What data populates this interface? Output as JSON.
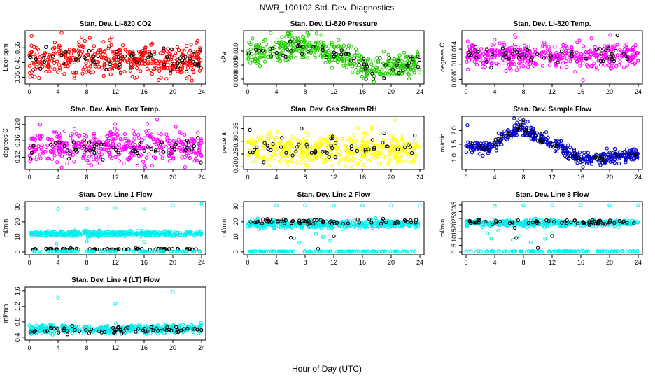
{
  "page": {
    "title": "NWR_100102  Std. Dev. Diagnostics",
    "xlabel": "Hour of Day (UTC)"
  },
  "colors": {
    "red": "#ff0000",
    "green": "#22cc00",
    "magenta": "#ff00ff",
    "yellow": "#ffff00",
    "blue": "#0000cc",
    "cyan": "#00eeee",
    "black": "#000000"
  },
  "chart_data": [
    {
      "type": "scatter",
      "title": "Stan. Dev. Li-820 CO2",
      "ylabel": "Licor ppm",
      "xlim": [
        0,
        24
      ],
      "ylim": [
        0.32,
        0.65
      ],
      "xticks": [
        0,
        4,
        8,
        12,
        16,
        20,
        24
      ],
      "yticks": [
        0.35,
        0.45,
        0.55
      ],
      "ytick_labels": [
        "0.35",
        "0.45",
        "0.55"
      ],
      "color": "red",
      "series": [
        {
          "name": "points",
          "color": "red",
          "pattern": "band",
          "n": 420,
          "mean": 0.47,
          "spread": 0.055,
          "outliers": [
            [
              0.3,
              0.63
            ],
            [
              4.5,
              0.66
            ],
            [
              7.3,
              0.62
            ],
            [
              11.5,
              0.62
            ],
            [
              19.1,
              0.34
            ],
            [
              0.4,
              0.36
            ]
          ]
        },
        {
          "name": "daily mean",
          "color": "black",
          "pattern": "band",
          "n": 60,
          "mean": 0.47,
          "spread": 0.04,
          "outliers": [
            [
              0.5,
              0.4
            ],
            [
              11.2,
              0.44
            ],
            [
              19.8,
              0.54
            ]
          ]
        }
      ]
    },
    {
      "type": "scatter",
      "title": "Stan. Dev. Li-820 Pressure",
      "ylabel": "kPa",
      "xlim": [
        0,
        24
      ],
      "ylim": [
        -0.001,
        0.0165
      ],
      "xticks": [
        0,
        4,
        8,
        12,
        16,
        20,
        24
      ],
      "yticks": [
        0.0,
        0.005,
        0.01
      ],
      "ytick_labels": [
        "0.000",
        "0.005",
        "0.010"
      ],
      "series": [
        {
          "name": "points",
          "color": "green",
          "pattern": "curve",
          "curve": [
            [
              0,
              0.009
            ],
            [
              4,
              0.0095
            ],
            [
              7,
              0.0125
            ],
            [
              10,
              0.0105
            ],
            [
              14,
              0.0075
            ],
            [
              17,
              0.004
            ],
            [
              20,
              0.005
            ],
            [
              24,
              0.0055
            ]
          ],
          "n": 420,
          "spread": 0.0022,
          "outliers": [
            [
              3.2,
              0.0168
            ],
            [
              5.6,
              0.0162
            ],
            [
              8.5,
              0.016
            ],
            [
              16.2,
              0.0002
            ],
            [
              22.5,
              0.0001
            ]
          ]
        },
        {
          "name": "daily mean",
          "color": "black",
          "pattern": "curve",
          "curve": [
            [
              0,
              0.009
            ],
            [
              4,
              0.0095
            ],
            [
              7,
              0.0125
            ],
            [
              10,
              0.0105
            ],
            [
              14,
              0.0075
            ],
            [
              17,
              0.004
            ],
            [
              20,
              0.005
            ],
            [
              24,
              0.0055
            ]
          ],
          "n": 55,
          "spread": 0.0018,
          "outliers": [
            [
              16.5,
              0.0
            ],
            [
              17.5,
              0.0
            ],
            [
              19.0,
              0.0003
            ]
          ]
        }
      ]
    },
    {
      "type": "scatter",
      "title": "Stan. Dev. Li-820 Temp.",
      "ylabel": "degrees C",
      "xlim": [
        0,
        24
      ],
      "ylim": [
        0.0075,
        0.0172
      ],
      "xticks": [
        0,
        4,
        8,
        12,
        16,
        20,
        24
      ],
      "yticks": [
        0.008,
        0.011,
        0.014
      ],
      "ytick_labels": [
        "0.008",
        "0.011",
        "0.014"
      ],
      "series": [
        {
          "name": "points",
          "color": "magenta",
          "pattern": "band",
          "n": 420,
          "mean": 0.0128,
          "spread": 0.0012,
          "outliers": [
            [
              16.3,
              0.0078
            ],
            [
              15.2,
              0.0095
            ],
            [
              20.1,
              0.0168
            ],
            [
              6.8,
              0.0168
            ]
          ]
        },
        {
          "name": "daily mean",
          "color": "black",
          "pattern": "band",
          "n": 55,
          "mean": 0.0129,
          "spread": 0.0008,
          "outliers": [
            [
              21.1,
              0.0167
            ],
            [
              3.5,
              0.0103
            ]
          ]
        }
      ]
    },
    {
      "type": "scatter",
      "title": "Stan. Dev. Amb. Box Temp.",
      "ylabel": "degrees C",
      "xlim": [
        0,
        24
      ],
      "ylim": [
        0.095,
        0.215
      ],
      "xticks": [
        0,
        4,
        8,
        12,
        16,
        20,
        24
      ],
      "yticks": [
        0.12,
        0.16,
        0.2
      ],
      "ytick_labels": [
        "0.12",
        "0.16",
        "0.20"
      ],
      "series": [
        {
          "name": "points",
          "color": "magenta",
          "pattern": "band",
          "n": 420,
          "mean": 0.145,
          "spread": 0.02,
          "outliers": [
            [
              17.8,
              0.212
            ],
            [
              1.5,
              0.2
            ],
            [
              16.0,
              0.1
            ]
          ]
        },
        {
          "name": "daily mean",
          "color": "black",
          "pattern": "band",
          "n": 60,
          "mean": 0.14,
          "spread": 0.012,
          "outliers": [
            [
              23.9,
              0.107
            ]
          ]
        }
      ]
    },
    {
      "type": "scatter",
      "title": "Stan. Dev. Gas Stream RH",
      "ylabel": "percent",
      "xlim": [
        0,
        24
      ],
      "ylim": [
        0.198,
        0.39
      ],
      "xticks": [
        0,
        4,
        8,
        12,
        16,
        20,
        24
      ],
      "yticks": [
        0.2,
        0.25,
        0.3,
        0.35
      ],
      "ytick_labels": [
        "0.20",
        "0.25",
        "0.30",
        "0.35"
      ],
      "series": [
        {
          "name": "points",
          "color": "yellow",
          "pattern": "band",
          "n": 420,
          "mean": 0.27,
          "spread": 0.03,
          "outliers": [
            [
              20.5,
              0.385
            ],
            [
              14.5,
              0.2
            ],
            [
              3.0,
              0.205
            ]
          ]
        },
        {
          "name": "daily mean",
          "color": "black",
          "pattern": "band",
          "n": 55,
          "mean": 0.275,
          "spread": 0.025,
          "outliers": [
            [
              0.3,
              0.345
            ],
            [
              7.5,
              0.35
            ]
          ]
        }
      ]
    },
    {
      "type": "scatter",
      "title": "Stan. Dev. Sample Flow",
      "ylabel": "ml/min",
      "xlim": [
        0,
        24
      ],
      "ylim": [
        0.65,
        2.45
      ],
      "xticks": [
        0,
        4,
        8,
        12,
        16,
        20,
        24
      ],
      "yticks": [
        1.0,
        1.5,
        2.0
      ],
      "ytick_labels": [
        "1.0",
        "1.5",
        "2.0"
      ],
      "series": [
        {
          "name": "points",
          "color": "blue",
          "pattern": "curve",
          "curve": [
            [
              0,
              1.45
            ],
            [
              3,
              1.3
            ],
            [
              5,
              1.7
            ],
            [
              7.5,
              2.1
            ],
            [
              10,
              1.8
            ],
            [
              13,
              1.4
            ],
            [
              16,
              0.95
            ],
            [
              19,
              1.0
            ],
            [
              24,
              1.15
            ]
          ],
          "n": 420,
          "spread": 0.12,
          "outliers": [
            [
              0.2,
              2.2
            ],
            [
              6.7,
              2.45
            ],
            [
              7.5,
              2.42
            ]
          ]
        },
        {
          "name": "daily mean",
          "color": "black",
          "pattern": "curve",
          "curve": [
            [
              0,
              1.45
            ],
            [
              3,
              1.3
            ],
            [
              5,
              1.7
            ],
            [
              7.5,
              2.1
            ],
            [
              10,
              1.8
            ],
            [
              13,
              1.4
            ],
            [
              16,
              0.95
            ],
            [
              19,
              1.0
            ],
            [
              24,
              1.15
            ]
          ],
          "n": 50,
          "spread": 0.08,
          "outliers": [
            [
              8.0,
              2.38
            ]
          ]
        }
      ]
    },
    {
      "type": "scatter",
      "title": "Stan. Dev. Line 1 Flow",
      "ylabel": "ml/min",
      "xlim": [
        0,
        24
      ],
      "ylim": [
        -0.5,
        32
      ],
      "xticks": [
        0,
        4,
        8,
        12,
        16,
        20,
        24
      ],
      "yticks": [
        0,
        10,
        20,
        30
      ],
      "ytick_labels": [
        "0",
        "10",
        "20",
        "30"
      ],
      "series": [
        {
          "name": "points",
          "color": "cyan",
          "pattern": "band",
          "n": 380,
          "mean": 12.2,
          "spread": 0.9,
          "outliers": [
            [
              4.0,
              28.5
            ],
            [
              8.0,
              29.0
            ],
            [
              12.0,
              29.2
            ],
            [
              16.0,
              29.0
            ],
            [
              20.0,
              31.0
            ],
            [
              24.0,
              32.0
            ],
            [
              8.0,
              7.0
            ],
            [
              16.0,
              6.5
            ],
            [
              3.8,
              5.5
            ]
          ]
        },
        {
          "name": "daily mean",
          "color": "black",
          "pattern": "band",
          "n": 70,
          "mean": 1.8,
          "spread": 0.3,
          "outliers": []
        },
        {
          "name": "zero line",
          "color": "cyan",
          "pattern": "band",
          "n": 90,
          "mean": 0.3,
          "spread": 0.1,
          "outliers": []
        }
      ]
    },
    {
      "type": "scatter",
      "title": "Stan. Dev. Line 2 Flow",
      "ylabel": "ml/min",
      "xlim": [
        0,
        24
      ],
      "ylim": [
        -0.5,
        32
      ],
      "xticks": [
        0,
        4,
        8,
        12,
        16,
        20,
        24
      ],
      "yticks": [
        0,
        10,
        20,
        30
      ],
      "ytick_labels": [
        "0",
        "10",
        "20",
        "30"
      ],
      "series": [
        {
          "name": "points",
          "color": "cyan",
          "pattern": "band",
          "n": 380,
          "mean": 18.5,
          "spread": 1.3,
          "outliers": [
            [
              4.0,
              31.0
            ],
            [
              8.0,
              31.0
            ],
            [
              12.0,
              31.0
            ],
            [
              16.0,
              31.0
            ],
            [
              20.0,
              31.0
            ],
            [
              24.0,
              31.0
            ],
            [
              6.5,
              9.0
            ],
            [
              7.2,
              6.0
            ],
            [
              9.5,
              12.0
            ],
            [
              10.5,
              10.0
            ],
            [
              11.5,
              7.5
            ]
          ]
        },
        {
          "name": "daily mean",
          "color": "black",
          "pattern": "band",
          "n": 65,
          "mean": 20.2,
          "spread": 0.9,
          "outliers": [
            [
              12.0,
              10.5
            ],
            [
              6.0,
              9.5
            ],
            [
              9.8,
              2.0
            ]
          ]
        },
        {
          "name": "zero line",
          "color": "cyan",
          "pattern": "band",
          "n": 110,
          "mean": 0.3,
          "spread": 0.1,
          "outliers": []
        }
      ]
    },
    {
      "type": "scatter",
      "title": "Stan. Dev. Line 3 Flow",
      "ylabel": "ml/min",
      "xlim": [
        0,
        24
      ],
      "ylim": [
        -0.5,
        36
      ],
      "xticks": [
        0,
        4,
        8,
        12,
        16,
        20,
        24
      ],
      "yticks": [
        0,
        5,
        10,
        15,
        20,
        25,
        30,
        35
      ],
      "ytick_labels": [
        "0",
        "5",
        "10",
        "15",
        "20",
        "25",
        "30",
        "35"
      ],
      "series": [
        {
          "name": "points",
          "color": "cyan",
          "pattern": "band",
          "n": 380,
          "mean": 21.5,
          "spread": 1.2,
          "outliers": [
            [
              4.0,
              34.5
            ],
            [
              8.0,
              35.0
            ],
            [
              12.0,
              35.0
            ],
            [
              16.0,
              35.0
            ],
            [
              20.0,
              35.0
            ],
            [
              24.0,
              35.0
            ],
            [
              3.0,
              14.0
            ],
            [
              3.5,
              10.0
            ],
            [
              4.5,
              16.0
            ],
            [
              6.5,
              9.0
            ],
            [
              7.5,
              12.0
            ],
            [
              9.0,
              7.0
            ],
            [
              11.0,
              10.0
            ],
            [
              12.0,
              14.0
            ]
          ]
        },
        {
          "name": "daily mean",
          "color": "black",
          "pattern": "band",
          "n": 65,
          "mean": 22.5,
          "spread": 0.9,
          "outliers": [
            [
              7.0,
              10.5
            ],
            [
              10.0,
              3.0
            ],
            [
              12.0,
              12.0
            ],
            [
              6.8,
              18.0
            ]
          ]
        },
        {
          "name": "zero line",
          "color": "cyan",
          "pattern": "band",
          "n": 110,
          "mean": 0.5,
          "spread": 0.15,
          "outliers": []
        }
      ]
    },
    {
      "type": "scatter",
      "title": "Stan. Dev. Line 4 (LT) Flow",
      "ylabel": "ml/min",
      "xlim": [
        0,
        24
      ],
      "ylim": [
        0.38,
        1.65
      ],
      "xticks": [
        0,
        4,
        8,
        12,
        16,
        20,
        24
      ],
      "yticks": [
        0.4,
        0.8,
        1.2,
        1.6
      ],
      "ytick_labels": [
        "0.4",
        "0.8",
        "1.2",
        "1.6"
      ],
      "series": [
        {
          "name": "points",
          "color": "cyan",
          "pattern": "band",
          "n": 400,
          "mean": 0.61,
          "spread": 0.055,
          "outliers": [
            [
              4.0,
              1.43
            ],
            [
              12.0,
              1.27
            ],
            [
              20.0,
              1.58
            ],
            [
              23.9,
              0.77
            ]
          ]
        },
        {
          "name": "daily mean",
          "color": "black",
          "pattern": "band",
          "n": 65,
          "mean": 0.6,
          "spread": 0.05,
          "outliers": []
        }
      ]
    }
  ]
}
